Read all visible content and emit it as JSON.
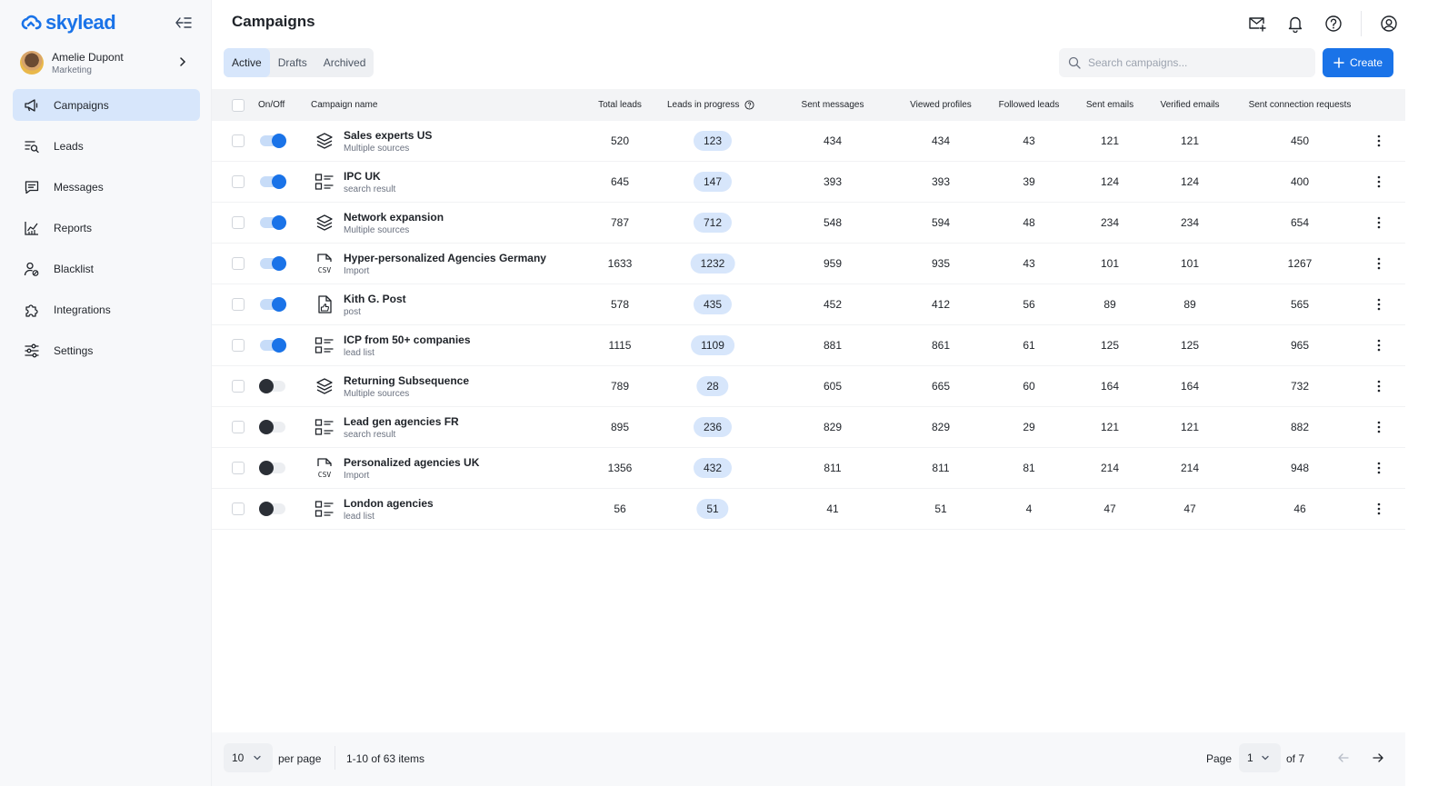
{
  "brand": {
    "name": "skylead",
    "accent": "#1a73e8"
  },
  "user": {
    "name": "Amelie Dupont",
    "role": "Marketing"
  },
  "nav": [
    {
      "label": "Campaigns",
      "icon": "megaphone-icon",
      "active": true
    },
    {
      "label": "Leads",
      "icon": "leads-list-icon",
      "active": false
    },
    {
      "label": "Messages",
      "icon": "message-icon",
      "active": false
    },
    {
      "label": "Reports",
      "icon": "chart-icon",
      "active": false
    },
    {
      "label": "Blacklist",
      "icon": "user-blocked-icon",
      "active": false
    },
    {
      "label": "Integrations",
      "icon": "puzzle-icon",
      "active": false
    },
    {
      "label": "Settings",
      "icon": "sliders-icon",
      "active": false
    }
  ],
  "header": {
    "title": "Campaigns"
  },
  "tabs": [
    {
      "label": "Active",
      "active": true
    },
    {
      "label": "Drafts",
      "active": false
    },
    {
      "label": "Archived",
      "active": false
    }
  ],
  "search": {
    "placeholder": "Search campaigns..."
  },
  "create_label": "Create",
  "columns": {
    "onoff": "On/Off",
    "name": "Campaign name",
    "total": "Total leads",
    "progress": "Leads in progress",
    "sent": "Sent messages",
    "viewed": "Viewed profiles",
    "followed": "Followed leads",
    "emails": "Sent emails",
    "verified": "Verified emails",
    "connections": "Sent connection requests"
  },
  "rows": [
    {
      "on": true,
      "icon": "layers-icon",
      "name": "Sales experts US",
      "source": "Multiple sources",
      "total": "520",
      "progress": "123",
      "sent": "434",
      "viewed": "434",
      "followed": "43",
      "emails": "121",
      "verified": "121",
      "connections": "450"
    },
    {
      "on": true,
      "icon": "list-icon",
      "name": "IPC UK",
      "source": "search result",
      "total": "645",
      "progress": "147",
      "sent": "393",
      "viewed": "393",
      "followed": "39",
      "emails": "124",
      "verified": "124",
      "connections": "400"
    },
    {
      "on": true,
      "icon": "layers-icon",
      "name": "Network expansion",
      "source": "Multiple sources",
      "total": "787",
      "progress": "712",
      "sent": "548",
      "viewed": "594",
      "followed": "48",
      "emails": "234",
      "verified": "234",
      "connections": "654"
    },
    {
      "on": true,
      "icon": "csv-icon",
      "name": "Hyper-personalized Agencies Germany",
      "source": "Import",
      "total": "1633",
      "progress": "1232",
      "sent": "959",
      "viewed": "935",
      "followed": "43",
      "emails": "101",
      "verified": "101",
      "connections": "1267"
    },
    {
      "on": true,
      "icon": "post-icon",
      "name": "Kith G. Post",
      "source": "post",
      "total": "578",
      "progress": "435",
      "sent": "452",
      "viewed": "412",
      "followed": "56",
      "emails": "89",
      "verified": "89",
      "connections": "565"
    },
    {
      "on": true,
      "icon": "list-icon",
      "name": "ICP from 50+ companies",
      "source": "lead list",
      "total": "1115",
      "progress": "1109",
      "sent": "881",
      "viewed": "861",
      "followed": "61",
      "emails": "125",
      "verified": "125",
      "connections": "965"
    },
    {
      "on": false,
      "icon": "layers-icon",
      "name": "Returning Subsequence",
      "source": "Multiple sources",
      "total": "789",
      "progress": "28",
      "sent": "605",
      "viewed": "665",
      "followed": "60",
      "emails": "164",
      "verified": "164",
      "connections": "732"
    },
    {
      "on": false,
      "icon": "list-icon",
      "name": "Lead gen agencies FR",
      "source": "search result",
      "total": "895",
      "progress": "236",
      "sent": "829",
      "viewed": "829",
      "followed": "29",
      "emails": "121",
      "verified": "121",
      "connections": "882"
    },
    {
      "on": false,
      "icon": "csv-icon",
      "name": "Personalized agencies UK",
      "source": "Import",
      "total": "1356",
      "progress": "432",
      "sent": "811",
      "viewed": "811",
      "followed": "81",
      "emails": "214",
      "verified": "214",
      "connections": "948"
    },
    {
      "on": false,
      "icon": "list-icon",
      "name": "London agencies",
      "source": "lead list",
      "total": "56",
      "progress": "51",
      "sent": "41",
      "viewed": "51",
      "followed": "4",
      "emails": "47",
      "verified": "47",
      "connections": "46"
    }
  ],
  "footer": {
    "per_page_value": "10",
    "per_page_label": "per page",
    "items_label": "1-10 of 63 items",
    "page_label": "Page",
    "page_value": "1",
    "of_label": "of 7"
  }
}
